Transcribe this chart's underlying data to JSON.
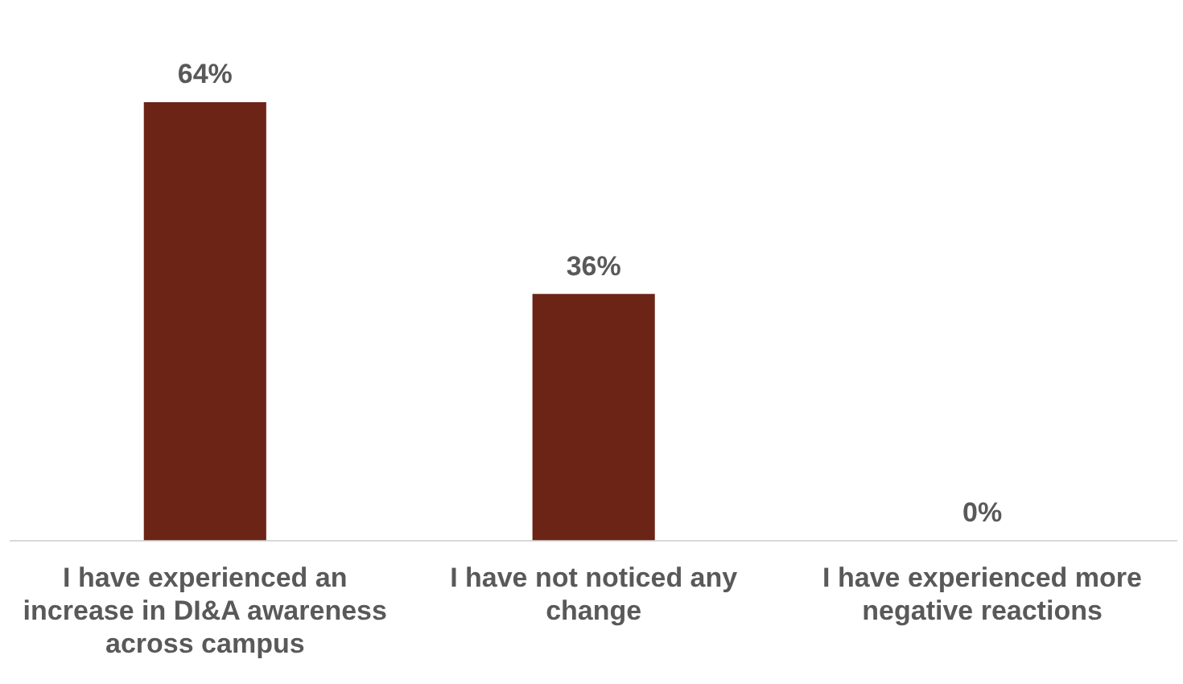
{
  "chart_data": {
    "type": "bar",
    "categories": [
      "I have experienced an increase in DI&A awareness across campus",
      "I have not noticed any change",
      "I have experienced more negative reactions"
    ],
    "values": [
      64,
      36,
      0
    ],
    "value_labels": [
      "64%",
      "36%",
      "0%"
    ],
    "color": "#6b2416"
  }
}
